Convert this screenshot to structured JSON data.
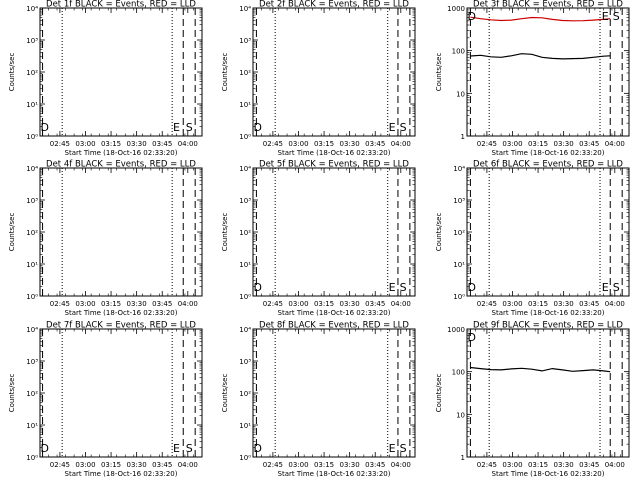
{
  "chart_data": [
    {
      "type": "line",
      "title": "Det 1f BLACK = Events, RED = LLD",
      "xlabel": "Start Time (18-Oct-16 02:33:20)",
      "ylabel": "Counts/sec",
      "scale": "log",
      "ylim_exp": [
        0,
        4
      ],
      "ytick_labels": [
        "10⁰",
        "10¹",
        "10²",
        "10³",
        "10⁴"
      ],
      "xlim_min": [
        0,
        95
      ],
      "xtick_labels": [
        "02:45",
        "03:00",
        "03:15",
        "03:30",
        "03:45",
        "04:00"
      ],
      "xtick_min": [
        11.67,
        26.67,
        41.67,
        56.67,
        71.67,
        86.67
      ],
      "dashed_lines_min": [
        1.5,
        84.0,
        91.0
      ],
      "dotted_lines_min": [
        13.0,
        77.5
      ],
      "markers": [
        {
          "text": "D",
          "x": 0.3
        },
        {
          "text": "E",
          "x": 78.0
        },
        {
          "text": "S",
          "x": 85.5
        }
      ],
      "series": []
    },
    {
      "type": "line",
      "title": "Det 2f BLACK = Events, RED = LLD",
      "xlabel": "Start Time (18-Oct-16 02:33:20)",
      "ylabel": "Counts/sec",
      "scale": "log",
      "ylim_exp": [
        0,
        4
      ],
      "ytick_labels": [
        "10⁰",
        "10¹",
        "10²",
        "10³",
        "10⁴"
      ],
      "xlim_min": [
        0,
        95
      ],
      "xtick_labels": [
        "02:45",
        "03:00",
        "03:15",
        "03:30",
        "03:45",
        "04:00"
      ],
      "xtick_min": [
        11.67,
        26.67,
        41.67,
        56.67,
        71.67,
        86.67
      ],
      "dashed_lines_min": [
        2.0,
        85.0,
        92.0
      ],
      "dotted_lines_min": [
        13.0,
        79.0
      ],
      "markers": [
        {
          "text": "D",
          "x": 0.3
        },
        {
          "text": "E",
          "x": 79.5
        },
        {
          "text": "S",
          "x": 86.0
        }
      ],
      "series": []
    },
    {
      "type": "line",
      "title": "Det 3f BLACK = Events, RED = LLD",
      "xlabel": "Start Time (18-Oct-16 02:33:20)",
      "ylabel": "Counts/sec",
      "scale": "log",
      "ylim_exp": [
        0,
        3
      ],
      "ytick_labels": [
        "1",
        "10",
        "100",
        "1000"
      ],
      "xlim_min": [
        0,
        95
      ],
      "xtick_labels": [
        "02:45",
        "03:00",
        "03:15",
        "03:30",
        "03:45",
        "04:00"
      ],
      "xtick_min": [
        11.67,
        26.67,
        41.67,
        56.67,
        71.67,
        86.67
      ],
      "dashed_lines_min": [
        2.0,
        84.0,
        91.0
      ],
      "dotted_lines_min": [
        13.0,
        78.0
      ],
      "markers": [
        {
          "text": "D",
          "x": 0.3
        },
        {
          "text": "E",
          "x": 79.0
        },
        {
          "text": "S",
          "x": 85.5
        }
      ],
      "series": [
        {
          "color": "#000000",
          "x": [
            2,
            8,
            14,
            20,
            26,
            32,
            38,
            44,
            50,
            56,
            62,
            68,
            74,
            80,
            84
          ],
          "y": [
            75,
            78,
            72,
            70,
            76,
            85,
            82,
            70,
            66,
            64,
            65,
            66,
            70,
            74,
            76
          ]
        },
        {
          "color": "#cc0000",
          "x": [
            2,
            8,
            14,
            20,
            26,
            32,
            38,
            44,
            50,
            56,
            62,
            68,
            74,
            80,
            84
          ],
          "y": [
            610,
            560,
            530,
            510,
            520,
            560,
            600,
            590,
            540,
            510,
            500,
            505,
            520,
            540,
            560
          ]
        }
      ]
    },
    {
      "type": "line",
      "title": "Det 4f BLACK = Events, RED = LLD",
      "xlabel": "Start Time (18-Oct-16 02:33:20)",
      "ylabel": "Counts/sec",
      "scale": "log",
      "ylim_exp": [
        0,
        4
      ],
      "ytick_labels": [
        "10⁰",
        "10¹",
        "10²",
        "10³",
        "10⁴"
      ],
      "xlim_min": [
        0,
        95
      ],
      "xtick_labels": [
        "02:45",
        "03:00",
        "03:15",
        "03:30",
        "03:45",
        "04:00"
      ],
      "xtick_min": [
        11.67,
        26.67,
        41.67,
        56.67,
        71.67,
        86.67
      ],
      "dashed_lines_min": [
        1.5,
        84.0,
        91.0
      ],
      "dotted_lines_min": [
        13.0,
        77.5
      ],
      "markers": [],
      "series": []
    },
    {
      "type": "line",
      "title": "Det 5f BLACK = Events, RED = LLD",
      "xlabel": "Start Time (18-Oct-16 02:33:20)",
      "ylabel": "Counts/sec",
      "scale": "log",
      "ylim_exp": [
        0,
        4
      ],
      "ytick_labels": [
        "10⁰",
        "10¹",
        "10²",
        "10³",
        "10⁴"
      ],
      "xlim_min": [
        0,
        95
      ],
      "xtick_labels": [
        "02:45",
        "03:00",
        "03:15",
        "03:30",
        "03:45",
        "04:00"
      ],
      "xtick_min": [
        11.67,
        26.67,
        41.67,
        56.67,
        71.67,
        86.67
      ],
      "dashed_lines_min": [
        2.0,
        85.0,
        92.0
      ],
      "dotted_lines_min": [
        13.0,
        79.0
      ],
      "markers": [
        {
          "text": "D",
          "x": 0.3
        },
        {
          "text": "E",
          "x": 79.5
        },
        {
          "text": "S",
          "x": 86.0
        }
      ],
      "series": []
    },
    {
      "type": "line",
      "title": "Det 6f BLACK = Events, RED = LLD",
      "xlabel": "Start Time (18-Oct-16 02:33:20)",
      "ylabel": "Counts/sec",
      "scale": "log",
      "ylim_exp": [
        0,
        4
      ],
      "ytick_labels": [
        "10⁰",
        "10¹",
        "10²",
        "10³",
        "10⁴"
      ],
      "xlim_min": [
        0,
        95
      ],
      "xtick_labels": [
        "02:45",
        "03:00",
        "03:15",
        "03:30",
        "03:45",
        "04:00"
      ],
      "xtick_min": [
        11.67,
        26.67,
        41.67,
        56.67,
        71.67,
        86.67
      ],
      "dashed_lines_min": [
        2.0,
        84.0,
        91.0
      ],
      "dotted_lines_min": [
        13.0,
        78.0
      ],
      "markers": [
        {
          "text": "D",
          "x": 0.3
        },
        {
          "text": "E",
          "x": 79.0
        },
        {
          "text": "S",
          "x": 85.5
        }
      ],
      "series": []
    },
    {
      "type": "line",
      "title": "Det 7f BLACK = Events, RED = LLD",
      "xlabel": "Start Time (18-Oct-16 02:33:20)",
      "ylabel": "Counts/sec",
      "scale": "log",
      "ylim_exp": [
        0,
        4
      ],
      "ytick_labels": [
        "10⁰",
        "10¹",
        "10²",
        "10³",
        "10⁴"
      ],
      "xlim_min": [
        0,
        95
      ],
      "xtick_labels": [
        "02:45",
        "03:00",
        "03:15",
        "03:30",
        "03:45",
        "04:00"
      ],
      "xtick_min": [
        11.67,
        26.67,
        41.67,
        56.67,
        71.67,
        86.67
      ],
      "dashed_lines_min": [
        1.5,
        84.0,
        91.0
      ],
      "dotted_lines_min": [
        13.0,
        77.5
      ],
      "markers": [
        {
          "text": "D",
          "x": 0.3
        },
        {
          "text": "E",
          "x": 78.0
        },
        {
          "text": "S",
          "x": 85.5
        }
      ],
      "series": []
    },
    {
      "type": "line",
      "title": "Det 8f BLACK = Events, RED = LLD",
      "xlabel": "Start Time (18-Oct-16 02:33:20)",
      "ylabel": "Counts/sec",
      "scale": "log",
      "ylim_exp": [
        0,
        4
      ],
      "ytick_labels": [
        "10⁰",
        "10¹",
        "10²",
        "10³",
        "10⁴"
      ],
      "xlim_min": [
        0,
        95
      ],
      "xtick_labels": [
        "02:45",
        "03:00",
        "03:15",
        "03:30",
        "03:45",
        "04:00"
      ],
      "xtick_min": [
        11.67,
        26.67,
        41.67,
        56.67,
        71.67,
        86.67
      ],
      "dashed_lines_min": [
        2.0,
        85.0,
        92.0
      ],
      "dotted_lines_min": [
        13.0,
        79.0
      ],
      "markers": [
        {
          "text": "D",
          "x": 0.3
        },
        {
          "text": "E",
          "x": 79.5
        },
        {
          "text": "S",
          "x": 86.0
        }
      ],
      "series": []
    },
    {
      "type": "line",
      "title": "Det 9f BLACK = Events, RED = LLD",
      "xlabel": "Start Time (18-Oct-16 02:33:20)",
      "ylabel": "Counts/sec",
      "scale": "log",
      "ylim_exp": [
        0,
        3
      ],
      "ytick_labels": [
        "1",
        "10",
        "100",
        "1000"
      ],
      "xlim_min": [
        0,
        95
      ],
      "xtick_labels": [
        "02:45",
        "03:00",
        "03:15",
        "03:30",
        "03:45",
        "04:00"
      ],
      "xtick_min": [
        11.67,
        26.67,
        41.67,
        56.67,
        71.67,
        86.67
      ],
      "dashed_lines_min": [
        2.0,
        84.0,
        91.0
      ],
      "dotted_lines_min": [
        13.0,
        78.0
      ],
      "markers": [
        {
          "text": "D",
          "x": 0.3
        }
      ],
      "series": [
        {
          "color": "#000000",
          "x": [
            2,
            8,
            14,
            20,
            26,
            32,
            38,
            44,
            50,
            56,
            62,
            68,
            74,
            80,
            84
          ],
          "y": [
            125,
            118,
            112,
            110,
            116,
            120,
            114,
            104,
            118,
            110,
            102,
            106,
            110,
            104,
            100
          ]
        }
      ]
    }
  ]
}
